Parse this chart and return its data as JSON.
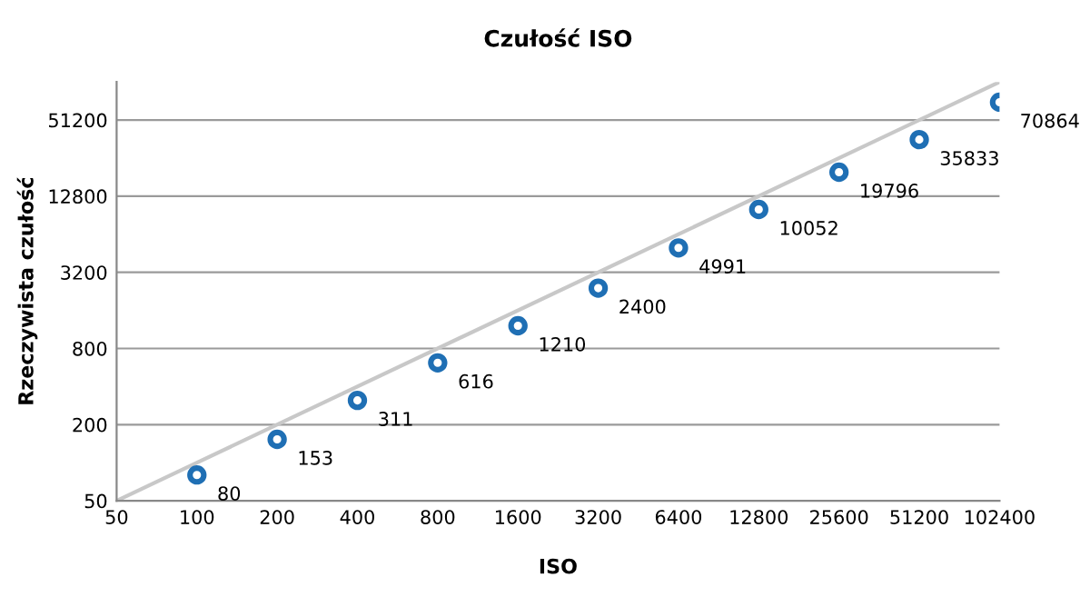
{
  "chart_data": {
    "type": "scatter",
    "title": "Czułość ISO",
    "xlabel": "ISO",
    "ylabel": "Rzeczywista czułość",
    "log": "xy",
    "grid": "y",
    "xlim": [
      50,
      102400
    ],
    "xticks": [
      50,
      100,
      200,
      400,
      800,
      1600,
      3200,
      6400,
      12800,
      25600,
      51200,
      102400
    ],
    "ylim": [
      50,
      102400
    ],
    "yticks": [
      50,
      200,
      800,
      3200,
      12800,
      51200
    ],
    "series": [
      {
        "marker": "circle",
        "data_labels": true,
        "color": "#1f6fb4",
        "x": [
          100,
          200,
          400,
          800,
          1600,
          3200,
          6400,
          12800,
          25600,
          51200,
          102400
        ],
        "values": [
          80,
          153,
          311,
          616,
          1210,
          2400,
          4991,
          10052,
          19796,
          35833,
          70864
        ]
      },
      {
        "type": "line",
        "marker": "none",
        "color": "#c8c8c8",
        "x": [
          50,
          102400
        ],
        "values": [
          50,
          102400
        ]
      }
    ]
  }
}
